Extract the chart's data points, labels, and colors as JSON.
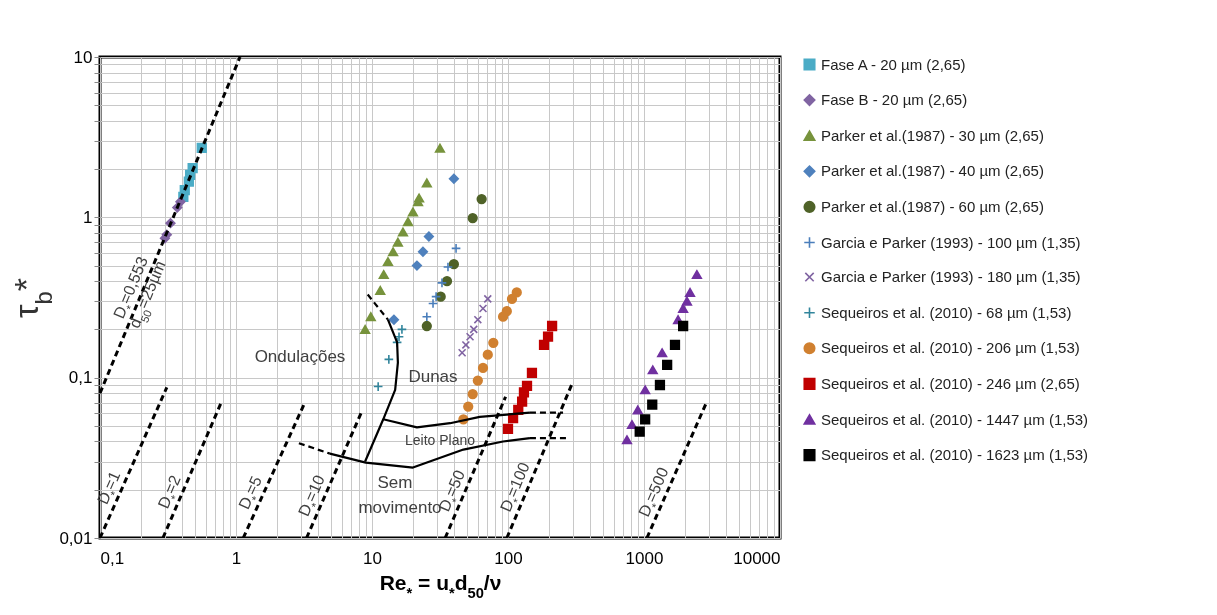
{
  "chart_data": {
    "type": "scatter",
    "xlabel": "Re$_{*}$ = u$_{*}$d$_{50}$/ν",
    "ylabel": "τ$_{b}$*",
    "log": "xy",
    "grid": true,
    "legend": "right",
    "xlim": [
      0.1,
      10000
    ],
    "ylim": [
      0.01,
      10
    ],
    "xticks": [
      {
        "value": 0.1,
        "label": "0,1"
      },
      {
        "value": 0.2,
        "label": null
      },
      {
        "value": 0.3,
        "label": null
      },
      {
        "value": 0.4,
        "label": null
      },
      {
        "value": 0.5,
        "label": null
      },
      {
        "value": 0.6,
        "label": null
      },
      {
        "value": 0.7,
        "label": null
      },
      {
        "value": 0.8,
        "label": null
      },
      {
        "value": 0.9,
        "label": null
      },
      1,
      {
        "value": 2,
        "label": null
      },
      {
        "value": 3,
        "label": null
      },
      {
        "value": 4,
        "label": null
      },
      {
        "value": 5,
        "label": null
      },
      {
        "value": 6,
        "label": null
      },
      {
        "value": 7,
        "label": null
      },
      {
        "value": 8,
        "label": null
      },
      {
        "value": 9,
        "label": null
      },
      10,
      {
        "value": 20,
        "label": null
      },
      {
        "value": 30,
        "label": null
      },
      {
        "value": 40,
        "label": null
      },
      {
        "value": 50,
        "label": null
      },
      {
        "value": 60,
        "label": null
      },
      {
        "value": 70,
        "label": null
      },
      {
        "value": 80,
        "label": null
      },
      {
        "value": 90,
        "label": null
      },
      100,
      {
        "value": 200,
        "label": null
      },
      {
        "value": 300,
        "label": null
      },
      {
        "value": 400,
        "label": null
      },
      {
        "value": 500,
        "label": null
      },
      {
        "value": 600,
        "label": null
      },
      {
        "value": 700,
        "label": null
      },
      {
        "value": 800,
        "label": null
      },
      {
        "value": 900,
        "label": null
      },
      1000,
      {
        "value": 2000,
        "label": null
      },
      {
        "value": 3000,
        "label": null
      },
      {
        "value": 4000,
        "label": null
      },
      {
        "value": 5000,
        "label": null
      },
      {
        "value": 6000,
        "label": null
      },
      {
        "value": 7000,
        "label": null
      },
      {
        "value": 8000,
        "label": null
      },
      {
        "value": 9000,
        "label": null
      },
      10000
    ],
    "yticks": [
      {
        "value": 0.01,
        "label": "0,01"
      },
      {
        "value": 0.02,
        "label": null
      },
      {
        "value": 0.03,
        "label": null
      },
      {
        "value": 0.04,
        "label": null
      },
      {
        "value": 0.05,
        "label": null
      },
      {
        "value": 0.06,
        "label": null
      },
      {
        "value": 0.07,
        "label": null
      },
      {
        "value": 0.08,
        "label": null
      },
      {
        "value": 0.09,
        "label": null
      },
      {
        "value": 0.1,
        "label": "0,1"
      },
      {
        "value": 0.2,
        "label": null
      },
      {
        "value": 0.3,
        "label": null
      },
      {
        "value": 0.4,
        "label": null
      },
      {
        "value": 0.5,
        "label": null
      },
      {
        "value": 0.6,
        "label": null
      },
      {
        "value": 0.7,
        "label": null
      },
      {
        "value": 0.8,
        "label": null
      },
      {
        "value": 0.9,
        "label": null
      },
      1,
      {
        "value": 2,
        "label": null
      },
      {
        "value": 3,
        "label": null
      },
      {
        "value": 4,
        "label": null
      },
      {
        "value": 5,
        "label": null
      },
      {
        "value": 6,
        "label": null
      },
      {
        "value": 7,
        "label": null
      },
      {
        "value": 8,
        "label": null
      },
      {
        "value": 9,
        "label": null
      },
      10
    ],
    "series": [
      {
        "name": "Fase A - 20 µm (2,65)",
        "color": "#4bacc6",
        "marker": "square",
        "x": [
          0.56,
          0.48,
          0.46,
          0.45,
          0.42,
          0.41
        ],
        "values": [
          2.71,
          2.03,
          1.84,
          1.67,
          1.48,
          1.34
        ]
      },
      {
        "name": "Fase B - 20 µm (2,65)",
        "color": "#8064a2",
        "marker": "diamond",
        "x": [
          0.39,
          0.37,
          0.33,
          0.31,
          0.3
        ],
        "values": [
          1.25,
          1.15,
          0.92,
          0.78,
          0.74
        ]
      },
      {
        "name": "Parker et al.(1987) - 30 µm (2,65)",
        "color": "#77933c",
        "marker": "triangle",
        "x": [
          31.6,
          25.3,
          22.2,
          21.8,
          20,
          18.4,
          16.9,
          15.5,
          14.3,
          13.1,
          12.2,
          11.5,
          9.8,
          8.9
        ],
        "values": [
          2.7,
          1.64,
          1.32,
          1.25,
          1.08,
          0.94,
          0.81,
          0.7,
          0.61,
          0.53,
          0.44,
          0.35,
          0.24,
          0.2
        ]
      },
      {
        "name": "Parker et al.(1987) - 40 µm (2,65)",
        "color": "#4f81bd",
        "marker": "diamond",
        "x": [
          40,
          26.2,
          23.7,
          21.4,
          14.5
        ],
        "values": [
          1.74,
          0.76,
          0.61,
          0.5,
          0.23
        ]
      },
      {
        "name": "Parker et al.(1987) - 60 µm (2,65)",
        "color": "#4f6228",
        "marker": "circle",
        "x": [
          64,
          55,
          40,
          35.6,
          32,
          25.3
        ],
        "values": [
          1.3,
          0.99,
          0.51,
          0.4,
          0.32,
          0.21
        ]
      },
      {
        "name": "Garcia e Parker (1993) - 100 µm (1,35)",
        "color": "#4a7ebb",
        "marker": "cross",
        "x": [
          41.5,
          36.2,
          32.7,
          29.6,
          28.1,
          25.3
        ],
        "values": [
          0.64,
          0.49,
          0.39,
          0.32,
          0.29,
          0.24
        ]
      },
      {
        "name": "Garcia e Parker (1993) - 180 µm (1,35)",
        "color": "#8064a2",
        "marker": "x",
        "x": [
          71,
          65.5,
          60,
          56,
          52.6,
          49,
          46
        ],
        "values": [
          0.31,
          0.27,
          0.23,
          0.2,
          0.18,
          0.16,
          0.143
        ]
      },
      {
        "name": "Sequeiros et al. (2010) - 68 µm (1,53)",
        "color": "#31859c",
        "marker": "cross",
        "x": [
          16.6,
          15.8,
          15.3,
          13.3,
          11.1
        ],
        "values": [
          0.2,
          0.18,
          0.166,
          0.13,
          0.088
        ]
      },
      {
        "name": "Sequeiros et al. (2010) - 206 µm (1,53)",
        "color": "#d08030",
        "marker": "circle",
        "x": [
          116,
          107,
          98,
          92,
          78,
          71,
          65.5,
          60,
          55,
          51,
          47
        ],
        "values": [
          0.34,
          0.31,
          0.26,
          0.24,
          0.165,
          0.139,
          0.115,
          0.096,
          0.079,
          0.066,
          0.055
        ]
      },
      {
        "name": "Sequeiros et al. (2010) - 246 µm (2,65)",
        "color": "#c00000",
        "marker": "square",
        "x": [
          211,
          197,
          184,
          150,
          138,
          131,
          127,
          119,
          109,
          100
        ],
        "values": [
          0.21,
          0.18,
          0.16,
          0.107,
          0.089,
          0.081,
          0.071,
          0.063,
          0.056,
          0.048
        ]
      },
      {
        "name": "Sequeiros et al. (2010) - 1447 µm (1,53)",
        "color": "#7030a0",
        "marker": "triangle",
        "x": [
          2450,
          2180,
          2070,
          1940,
          1780,
          1360,
          1160,
          1020,
          900,
          816,
          750
        ],
        "values": [
          0.44,
          0.34,
          0.3,
          0.27,
          0.23,
          0.143,
          0.112,
          0.084,
          0.063,
          0.051,
          0.041
        ]
      },
      {
        "name": "Sequeiros et al. (2010) - 1623 µm (1,53)",
        "color": "#000000",
        "marker": "square",
        "x": [
          1940,
          1690,
          1480,
          1310,
          1150,
          1020,
          930
        ],
        "values": [
          0.21,
          0.16,
          0.12,
          0.09,
          0.068,
          0.055,
          0.046
        ]
      },
      {
        "type": "line",
        "name": "D$_{*}$=0,553\nd$_{50}$=25µm",
        "color": "#000000",
        "line_style": "dashed",
        "x": [
          0.1,
          1.07
        ],
        "values": [
          0.08,
          10
        ]
      },
      {
        "type": "line",
        "name": "D$_{*}$=1",
        "color": "#000000",
        "line_style": "dashed",
        "x": [
          0.1,
          0.31
        ],
        "values": [
          0.01,
          0.087
        ]
      },
      {
        "type": "line",
        "name": "D$_{*}$=2",
        "color": "#000000",
        "line_style": "dashed",
        "x": [
          0.29,
          0.79
        ],
        "values": [
          0.01,
          0.072
        ]
      },
      {
        "type": "line",
        "name": "D$_{*}$=5",
        "color": "#000000",
        "line_style": "dashed",
        "x": [
          1.13,
          3.16
        ],
        "values": [
          0.01,
          0.068
        ]
      },
      {
        "type": "line",
        "name": "D$_{*}$=10",
        "color": "#000000",
        "line_style": "dashed",
        "x": [
          3.3,
          8.3
        ],
        "values": [
          0.01,
          0.06
        ]
      },
      {
        "type": "line",
        "name": "D$_{*}$=50",
        "color": "#000000",
        "line_style": "dashed",
        "x": [
          34.5,
          96
        ],
        "values": [
          0.01,
          0.076
        ]
      },
      {
        "type": "line",
        "name": "D$_{*}$=100",
        "color": "#000000",
        "line_style": "dashed",
        "x": [
          98,
          295
        ],
        "values": [
          0.01,
          0.091
        ]
      },
      {
        "type": "line",
        "name": "D$_{*}$=500",
        "color": "#000000",
        "line_style": "dashed",
        "x": [
          1050,
          2900
        ],
        "values": [
          0.01,
          0.071
        ]
      },
      {
        "type": "line",
        "color": "#000000",
        "line_style": "dashed",
        "x": [
          9.3,
          13.1
        ],
        "values": [
          0.33,
          0.23
        ]
      },
      {
        "type": "line",
        "color": "#000000",
        "line_style": "solid",
        "x": [
          13.1,
          15.3,
          15.5,
          14.8,
          12.1,
          8.9
        ],
        "values": [
          0.23,
          0.166,
          0.124,
          0.084,
          0.055,
          0.03
        ]
      },
      {
        "type": "line",
        "color": "#000000",
        "line_style": "solid",
        "x": [
          12.1,
          21.4,
          37.5,
          62,
          145
        ],
        "values": [
          0.055,
          0.049,
          0.052,
          0.057,
          0.0605
        ]
      },
      {
        "type": "line",
        "color": "#000000",
        "line_style": "dashed",
        "x": [
          145,
          254
        ],
        "values": [
          0.0605,
          0.0605
        ]
      },
      {
        "type": "line",
        "color": "#000000",
        "line_style": "dashed",
        "x": [
          2.9,
          4.9
        ],
        "values": [
          0.039,
          0.0336
        ]
      },
      {
        "type": "line",
        "color": "#000000",
        "line_style": "solid",
        "x": [
          4.9,
          9,
          20,
          47,
          92,
          145
        ],
        "values": [
          0.0336,
          0.0295,
          0.0275,
          0.0356,
          0.04,
          0.042
        ]
      },
      {
        "type": "line",
        "color": "#000000",
        "line_style": "dashed",
        "x": [
          145,
          272
        ],
        "values": [
          0.042,
          0.042
        ]
      }
    ],
    "annotations": [
      "Ondulações",
      "Dunas",
      "Leito Plano",
      "Sem",
      "movimento"
    ]
  }
}
